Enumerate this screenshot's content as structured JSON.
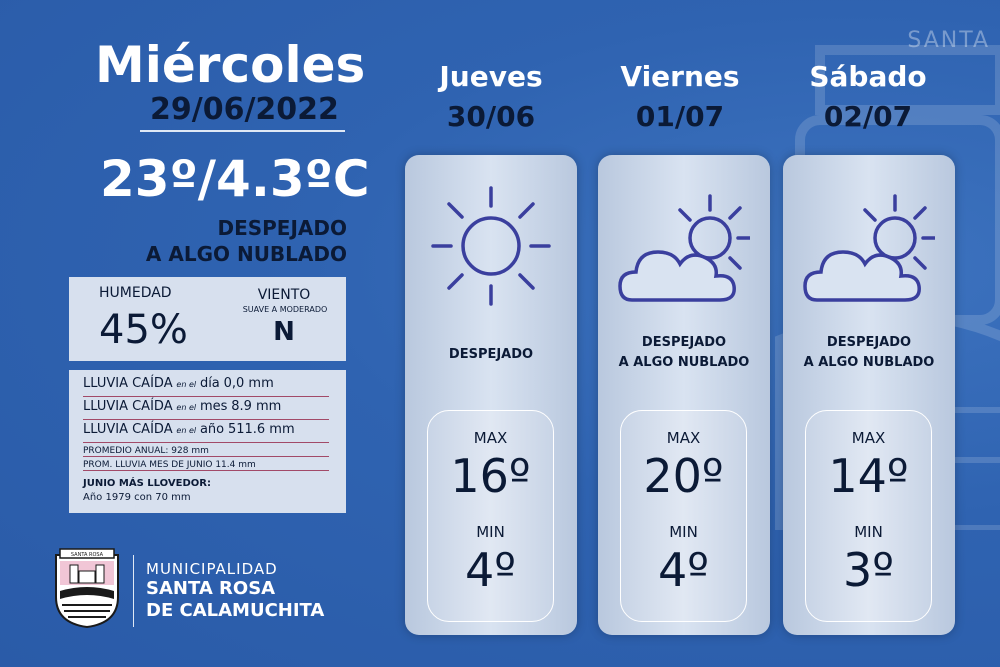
{
  "watermark_text": "SANTA",
  "today": {
    "day": "Miércoles",
    "date": "29/06/2022",
    "temperature": "23º/4.3ºC",
    "condition_line1": "DESPEJADO",
    "condition_line2": "A ALGO NUBLADO",
    "humidity_label": "HUMEDAD",
    "humidity_value": "45%",
    "wind_label": "VIENTO",
    "wind_desc": "SUAVE A MODERADO",
    "wind_value": "N"
  },
  "rain": {
    "label": "LLUVIA CAÍDA",
    "rows": [
      {
        "prefix": "en el",
        "period": "día",
        "value": "0,0 mm"
      },
      {
        "prefix": "en el",
        "period": "mes",
        "value": "8.9 mm"
      },
      {
        "prefix": "en el",
        "period": "año",
        "value": "511.6 mm"
      }
    ],
    "annual_avg": "PROMEDIO ANUAL: 928 mm",
    "june_avg": "PROM. LLUVIA MES DE JUNIO 11.4 mm",
    "rainiest_title": "JUNIO MÁS LLOVEDOR:",
    "rainiest_detail": "Año 1979 con 70 mm"
  },
  "municipality": {
    "line1": "MUNICIPALIDAD",
    "line2": "SANTA ROSA",
    "line3": "DE CALAMUCHITA",
    "logo_text": "SANTA ROSA"
  },
  "forecast": [
    {
      "day": "Jueves",
      "date": "30/06",
      "icon": "sun-icon",
      "cond1": "DESPEJADO",
      "cond2": "",
      "max_label": "MAX",
      "max": "16º",
      "min_label": "MIN",
      "min": "4º"
    },
    {
      "day": "Viernes",
      "date": "01/07",
      "icon": "partly-cloudy-icon",
      "cond1": "DESPEJADO",
      "cond2": "A ALGO NUBLADO",
      "max_label": "MAX",
      "max": "20º",
      "min_label": "MIN",
      "min": "4º"
    },
    {
      "day": "Sábado",
      "date": "02/07",
      "icon": "partly-cloudy-icon",
      "cond1": "DESPEJADO",
      "cond2": "A ALGO NUBLADO",
      "max_label": "MAX",
      "max": "14º",
      "min_label": "MIN",
      "min": "3º"
    }
  ],
  "colors": {
    "background": "#2f63b1",
    "panel": "#d7e0ee",
    "text_dark": "#0b1a36",
    "icon_stroke": "#3a3f9e",
    "divider": "#a24a68"
  }
}
